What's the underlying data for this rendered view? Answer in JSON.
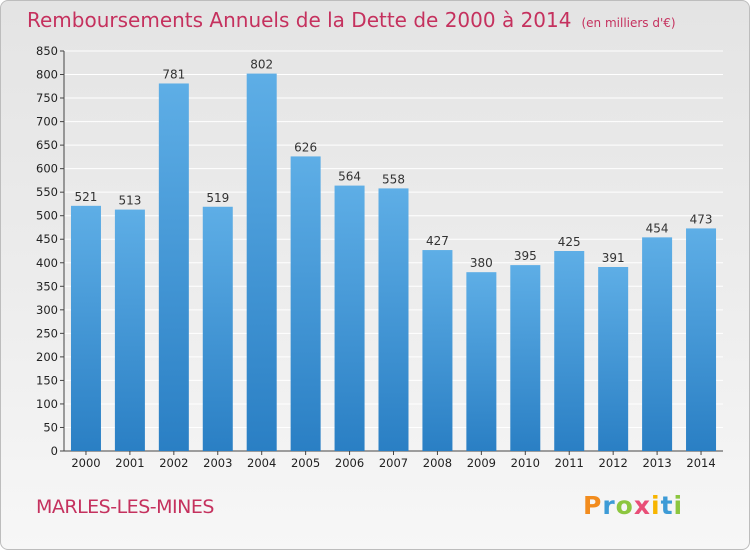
{
  "chart_data": {
    "type": "bar",
    "title": "Remboursements Annuels de la Dette de 2000 à 2014",
    "unit": "(en milliers d'€)",
    "categories": [
      "2000",
      "2001",
      "2002",
      "2003",
      "2004",
      "2005",
      "2006",
      "2007",
      "2008",
      "2009",
      "2010",
      "2011",
      "2012",
      "2013",
      "2014"
    ],
    "values": [
      521,
      513,
      781,
      519,
      802,
      626,
      564,
      558,
      427,
      380,
      395,
      425,
      391,
      454,
      473
    ],
    "ylim": [
      0,
      850
    ],
    "ytick_step": 50,
    "grid": true,
    "legend": "none",
    "bar_color_top": "#5eaee6",
    "bar_color_bottom": "#2a7fc4"
  },
  "location": "MARLES-LES-MINES",
  "brand": {
    "name": "Proxiti",
    "letters": [
      "P",
      "r",
      "o",
      "x",
      "i",
      "t",
      "i"
    ],
    "colors": [
      "#f28c1e",
      "#3d9bd6",
      "#8cc63f",
      "#e94e77",
      "#f7b500",
      "#3d9bd6",
      "#8cc63f"
    ]
  }
}
